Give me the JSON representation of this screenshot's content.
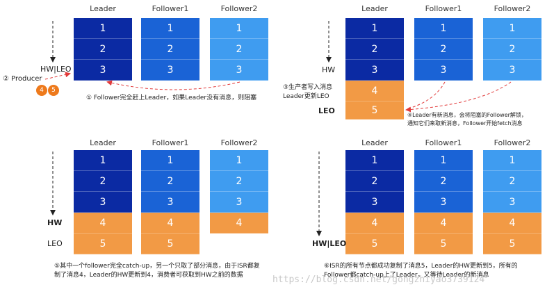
{
  "headers": {
    "leader": "Leader",
    "follower1": "Follower1",
    "follower2": "Follower2"
  },
  "nums": [
    "1",
    "2",
    "3",
    "4",
    "5"
  ],
  "colors": {
    "leader": "#0b2aa3",
    "follower1": "#1a63d6",
    "follower2": "#3f9cf0",
    "new_message": "#f29a45",
    "arrow": "#e23a3a"
  },
  "p1": {
    "hw_leo": "HW|LEO",
    "producer": "② Producer",
    "badges": [
      "4",
      "5"
    ],
    "caption": "① Follower完全赶上Leader，如果Leader没有消息，则阻塞"
  },
  "p2": {
    "hw": "HW",
    "leo": "LEO",
    "caption_left": "③生产者写入消息\nLeader更新LEO",
    "caption_right": "④Leader有新消息，会将阻塞的Follower解锁，\n通知它们来取新消息，Follower开始fetch消息"
  },
  "p3": {
    "hw": "HW",
    "leo": "LEO",
    "caption": "⑤其中一个follower完全catch-up，另一个只取了部分消息，由于ISR都复\n制了消息4，Leader的HW更新到4，消费者可获取到HW之前的数据"
  },
  "p4": {
    "hw_leo": "HW|LEO",
    "caption": "⑥ISR的所有节点都成功复制了消息5，Leader的HW更新到5，所有的\nFollower都catch-up上了Leader，又等待Leader的新消息"
  },
  "watermark": "https://blog.csdn.net/gongzhiyao3739124"
}
